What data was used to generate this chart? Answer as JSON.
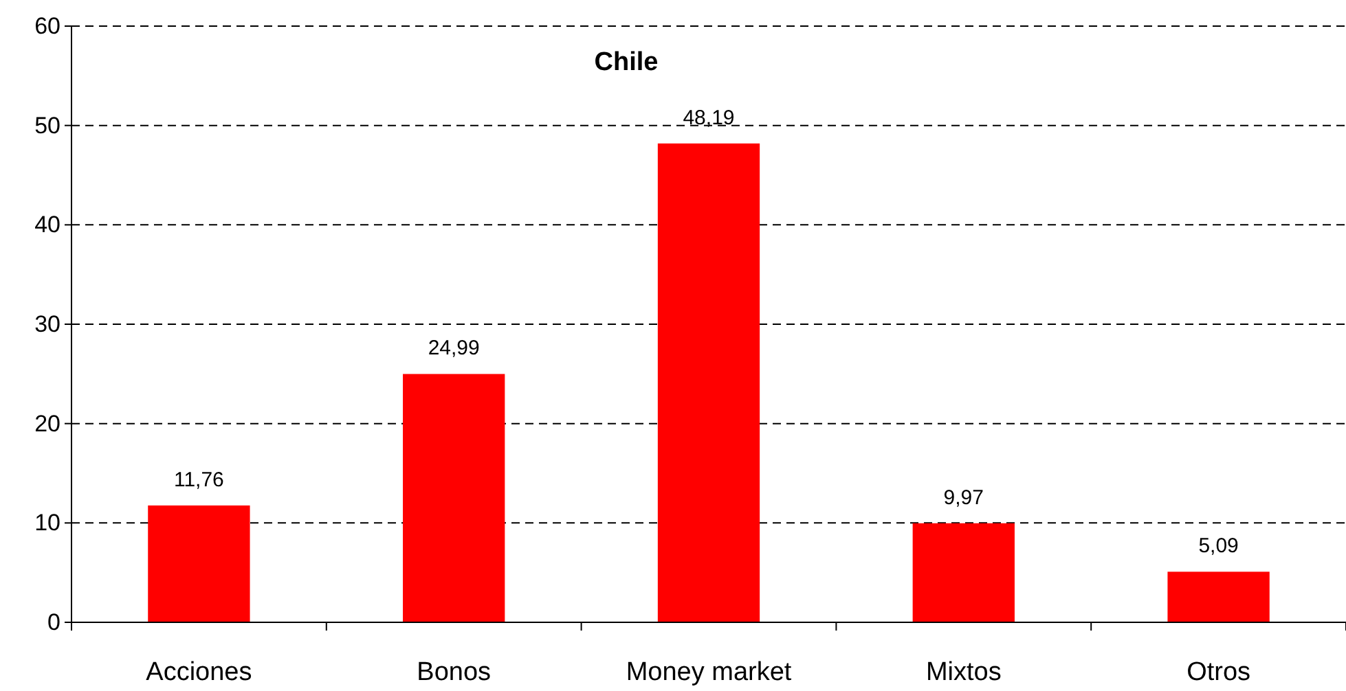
{
  "chart_data": {
    "type": "bar",
    "title": "Chile",
    "categories": [
      "Acciones",
      "Bonos",
      "Money market",
      "Mixtos",
      "Otros"
    ],
    "values": [
      11.76,
      24.99,
      48.19,
      9.97,
      5.09
    ],
    "value_labels": [
      "11,76",
      "24,99",
      "48,19",
      "9,97",
      "5,09"
    ],
    "color": "#ff0000",
    "ylim": [
      0,
      60
    ],
    "yticks": [
      0,
      10,
      20,
      30,
      40,
      50,
      60
    ],
    "grid": "y",
    "line_style": "dashed"
  }
}
